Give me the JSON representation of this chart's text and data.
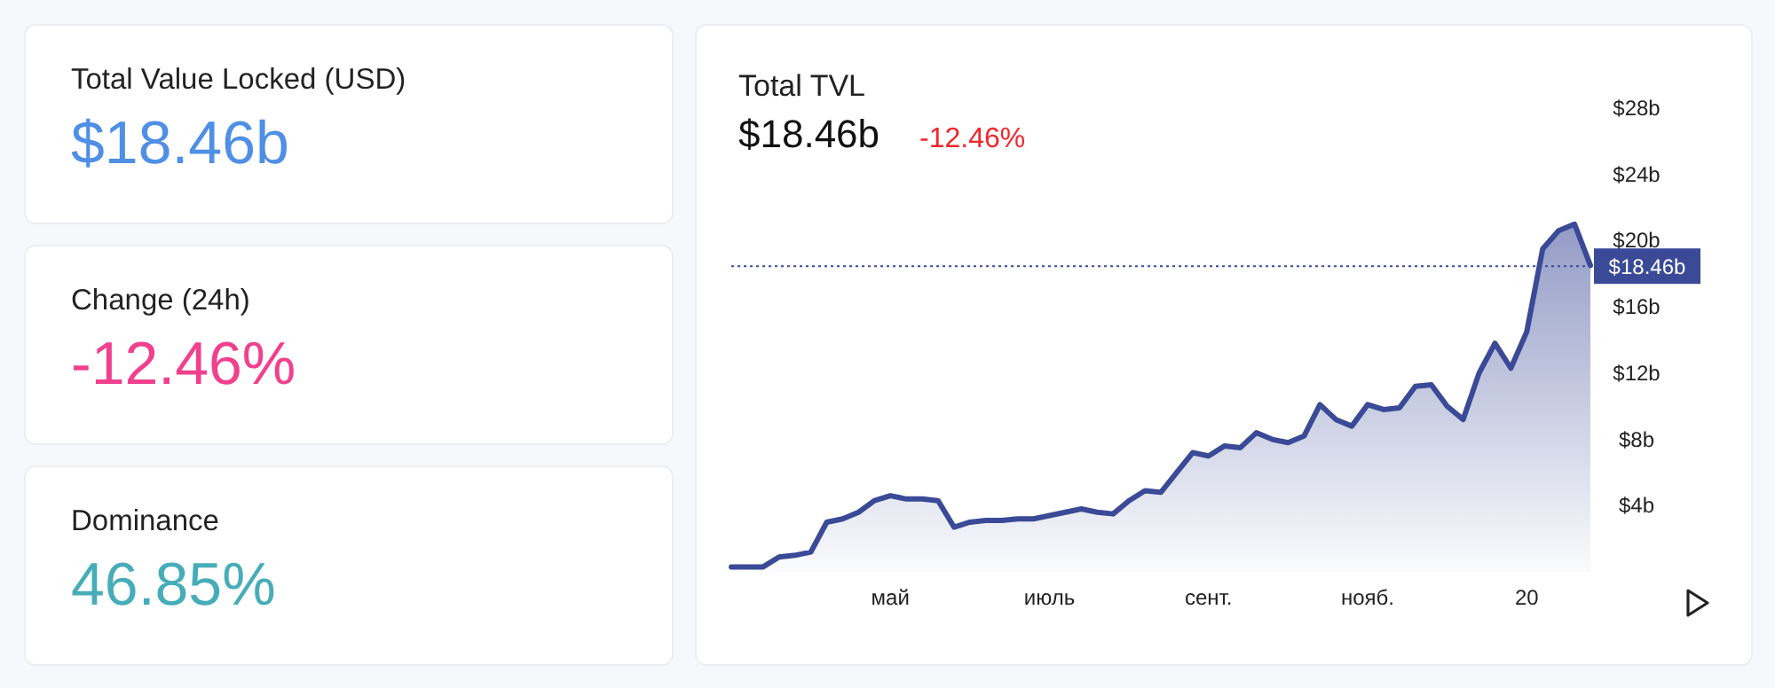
{
  "chart_data": [
    {
      "type": "other",
      "annotations": [
        "Total Value Locked (USD)",
        "$18.46b",
        "Change (24h)",
        "-12.46%",
        "Dominance",
        "46.85%"
      ]
    },
    {
      "type": "area",
      "title": "Total TVL",
      "subtitle": "$18.46b",
      "annotations": [
        "-12.46%"
      ],
      "categories": [
        null,
        null,
        null,
        null,
        null,
        null,
        null,
        null,
        null,
        null,
        "май",
        null,
        null,
        null,
        null,
        null,
        null,
        null,
        null,
        null,
        "июль",
        null,
        null,
        null,
        null,
        null,
        null,
        null,
        null,
        null,
        "сент.",
        null,
        null,
        null,
        null,
        null,
        null,
        null,
        null,
        null,
        "нояб.",
        null,
        null,
        null,
        null,
        null,
        null,
        null,
        null,
        null,
        "20",
        null,
        null,
        null,
        null
      ],
      "series": [
        {
          "color": "#3a4a97",
          "values": [
            0.3,
            0.3,
            0.3,
            0.9,
            1.0,
            1.2,
            3.0,
            3.2,
            3.6,
            4.3,
            4.6,
            4.4,
            4.4,
            4.3,
            2.7,
            3.0,
            3.1,
            3.1,
            3.2,
            3.2,
            3.4,
            3.6,
            3.8,
            3.6,
            3.5,
            4.3,
            4.9,
            4.8,
            6.0,
            7.2,
            7.0,
            7.6,
            7.5,
            8.4,
            8.0,
            7.8,
            8.2,
            10.1,
            9.2,
            8.8,
            10.1,
            9.8,
            9.9,
            11.2,
            11.3,
            10.0,
            9.2,
            12.0,
            13.8,
            12.3,
            14.5,
            19.5,
            20.6,
            21.0,
            18.5
          ]
        }
      ],
      "ylim": [
        0,
        28
      ],
      "yticks": [
        {
          "value": 4,
          "label": "$4b"
        },
        {
          "value": 8,
          "label": "$8b"
        },
        {
          "value": 12,
          "label": "$12b"
        },
        {
          "value": 16,
          "label": "$16b"
        },
        {
          "value": 20,
          "label": "$20b"
        },
        {
          "value": 24,
          "label": "$24b"
        },
        {
          "value": 28,
          "label": "$28b"
        }
      ],
      "ref_lines": [
        {
          "axis": "y",
          "value": 18.46,
          "label": "$18.46b",
          "color": "#3a4a97",
          "line_style": "dotted"
        }
      ],
      "grid": false
    }
  ]
}
